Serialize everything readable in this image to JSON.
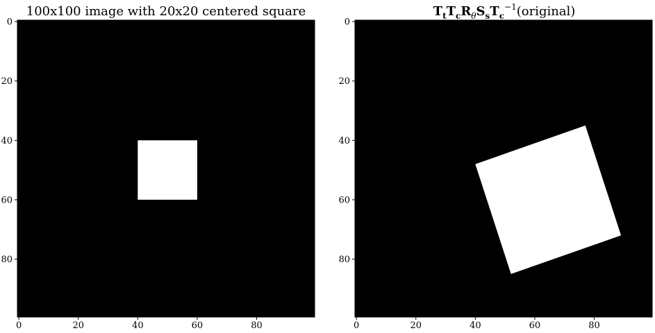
{
  "chart_data": [
    {
      "type": "image",
      "title": "100x100 image with 20x20 centered square",
      "xlim": [
        -0.5,
        99.5
      ],
      "ylim": [
        99.5,
        -0.5
      ],
      "xticks": [
        0,
        20,
        40,
        60,
        80
      ],
      "yticks": [
        0,
        20,
        40,
        60,
        80
      ],
      "background_color": "#000000",
      "foreground_color": "#ffffff",
      "square_polygon": [
        [
          40,
          40
        ],
        [
          60,
          40
        ],
        [
          60,
          60
        ],
        [
          40,
          60
        ]
      ]
    },
    {
      "type": "image",
      "title": "T_t T_c R_θ S_s T_c^{-1}(original)",
      "title_parts": {
        "t1": "T",
        "t1_sub": "t",
        "t2": "T",
        "t2_sub": "c",
        "t3": "R",
        "t3_sub": "θ",
        "t4": "S",
        "t4_sub": "s",
        "t5": "T",
        "t5_sub": "c",
        "t5_sup": "−1",
        "suffix": "(original)"
      },
      "xlim": [
        -0.5,
        99.5
      ],
      "ylim": [
        99.5,
        -0.5
      ],
      "xticks": [
        0,
        20,
        40,
        60,
        80
      ],
      "yticks": [
        0,
        20,
        40,
        60,
        80
      ],
      "background_color": "#000000",
      "foreground_color": "#ffffff",
      "square_polygon": [
        [
          77,
          35
        ],
        [
          89,
          72
        ],
        [
          52,
          85
        ],
        [
          40,
          48
        ]
      ]
    }
  ]
}
